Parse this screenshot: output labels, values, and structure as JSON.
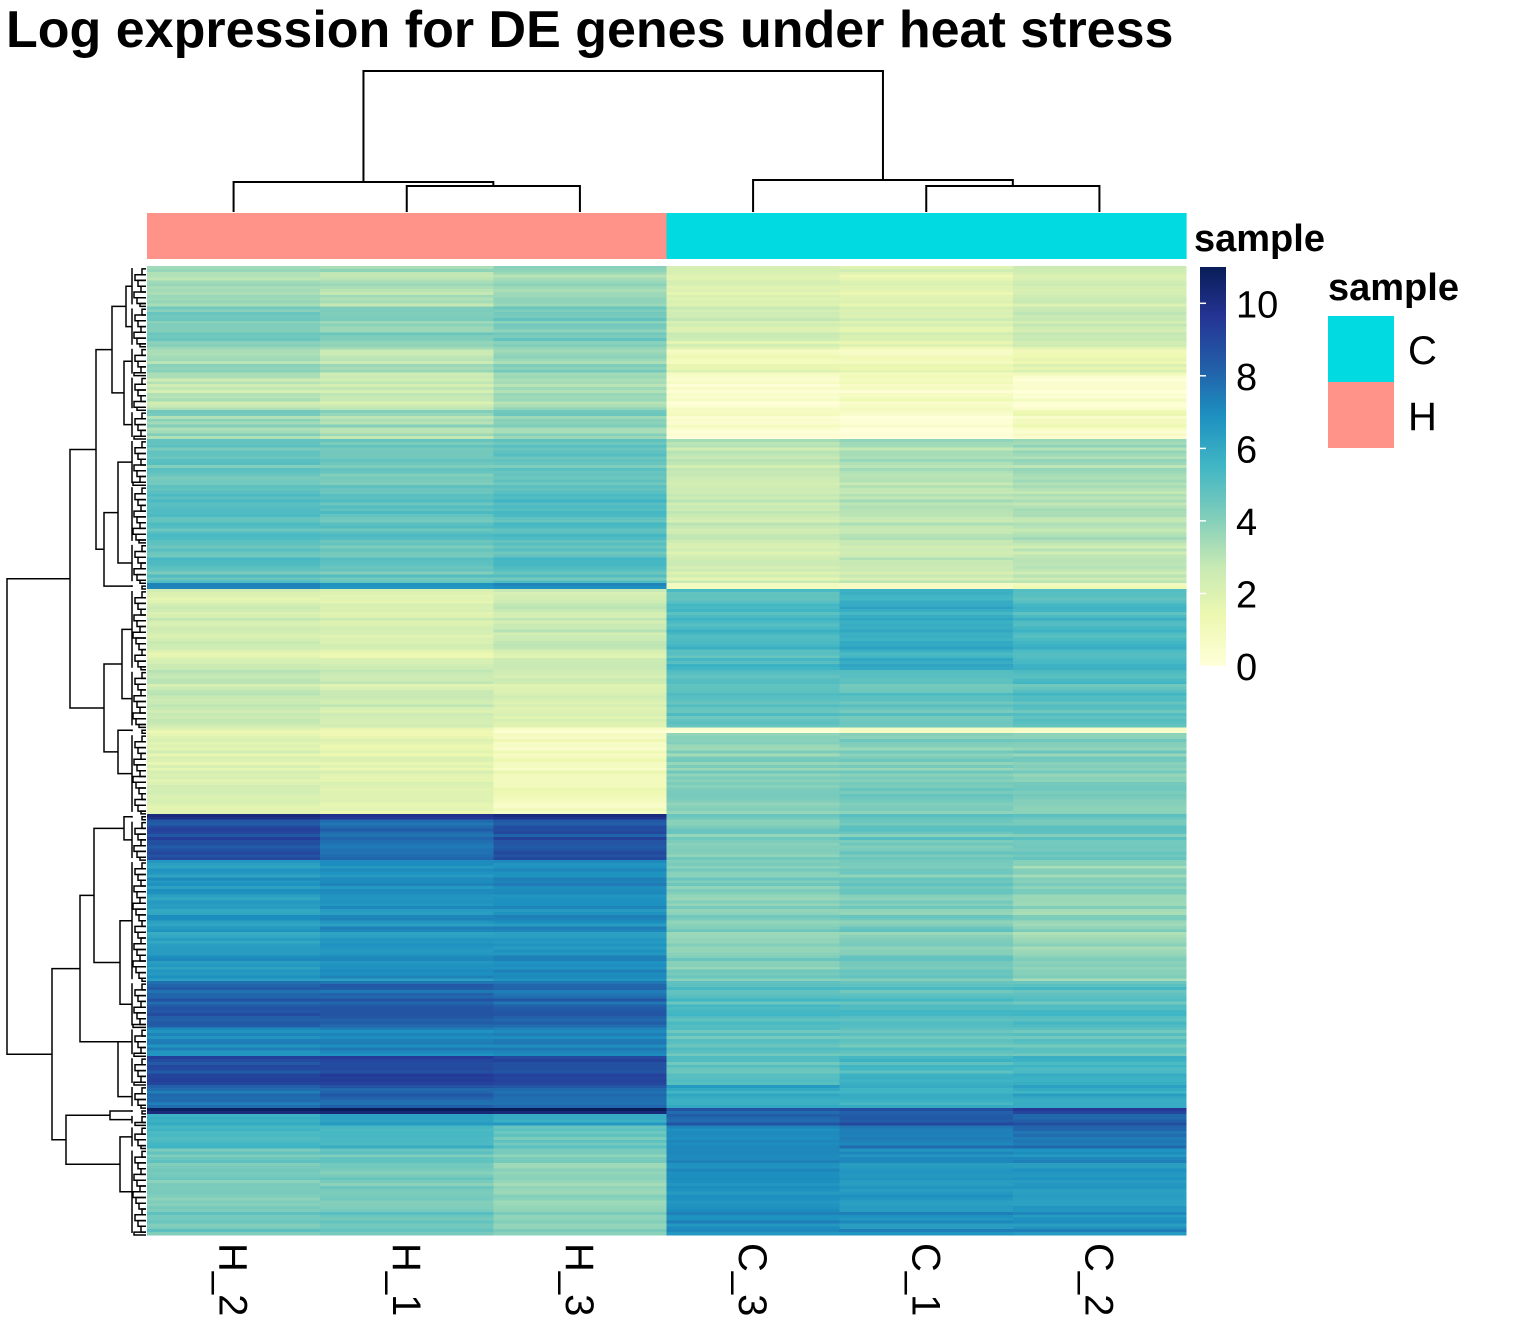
{
  "chart_data": {
    "type": "heatmap",
    "title": "Log expression for DE genes under heat stress",
    "columns": [
      "H_2",
      "H_1",
      "H_3",
      "C_3",
      "C_1",
      "C_2"
    ],
    "column_annotation": {
      "name": "sample",
      "values": [
        "H",
        "H",
        "H",
        "C",
        "C",
        "C"
      ],
      "legend": {
        "title": "sample",
        "levels": [
          {
            "label": "C",
            "color": "#00DAE0"
          },
          {
            "label": "H",
            "color": "#FF9289"
          }
        ]
      }
    },
    "colorbar": {
      "ticks": [
        0,
        2,
        4,
        6,
        8,
        10
      ],
      "range": [
        0,
        11
      ],
      "colors": [
        "#FFFFD9",
        "#EDF8B1",
        "#C7E9B4",
        "#7FCDBB",
        "#41B6C4",
        "#1D91C0",
        "#225EA8",
        "#253494",
        "#081D58"
      ]
    },
    "row_blocks": [
      {
        "rows": 14,
        "values": [
          3.5,
          3.2,
          3.6,
          2.0,
          1.8,
          2.3
        ]
      },
      {
        "rows": 14,
        "values": [
          4.2,
          4.0,
          4.3,
          2.3,
          2.0,
          2.6
        ]
      },
      {
        "rows": 10,
        "values": [
          3.6,
          3.1,
          3.8,
          1.4,
          1.2,
          1.7
        ]
      },
      {
        "rows": 12,
        "values": [
          2.8,
          2.6,
          3.3,
          0.4,
          0.8,
          0.3
        ]
      },
      {
        "rows": 10,
        "values": [
          3.8,
          3.4,
          3.9,
          0.5,
          0.2,
          0.9
        ]
      },
      {
        "rows": 16,
        "values": [
          4.6,
          4.4,
          4.7,
          2.8,
          3.3,
          3.5
        ]
      },
      {
        "rows": 20,
        "values": [
          5.1,
          4.9,
          5.1,
          2.6,
          3.0,
          3.2
        ]
      },
      {
        "rows": 14,
        "values": [
          4.8,
          4.6,
          4.9,
          2.2,
          2.6,
          2.8
        ]
      },
      {
        "rows": 2,
        "values": [
          7.3,
          6.9,
          7.3,
          1.0,
          0.8,
          1.4
        ]
      },
      {
        "rows": 28,
        "values": [
          2.2,
          2.0,
          2.5,
          5.2,
          5.8,
          5.3
        ]
      },
      {
        "rows": 20,
        "values": [
          2.6,
          2.3,
          2.0,
          4.8,
          4.6,
          4.9
        ]
      },
      {
        "rows": 2,
        "values": [
          1.6,
          1.5,
          0.6,
          0.4,
          0.8,
          0.5
        ]
      },
      {
        "rows": 28,
        "values": [
          2.0,
          1.7,
          1.0,
          4.0,
          4.2,
          4.1
        ]
      },
      {
        "rows": 2,
        "values": [
          9.8,
          9.2,
          9.6,
          4.0,
          4.4,
          4.4
        ]
      },
      {
        "rows": 14,
        "values": [
          8.9,
          7.9,
          8.7,
          4.2,
          4.6,
          4.6
        ]
      },
      {
        "rows": 42,
        "values": [
          6.5,
          6.8,
          6.9,
          4.0,
          4.2,
          3.8
        ]
      },
      {
        "rows": 16,
        "values": [
          8.2,
          8.2,
          8.0,
          5.1,
          4.9,
          5.0
        ]
      },
      {
        "rows": 10,
        "values": [
          7.0,
          7.3,
          7.2,
          4.8,
          4.7,
          4.8
        ]
      },
      {
        "rows": 10,
        "values": [
          8.9,
          9.1,
          9.0,
          5.0,
          5.4,
          5.6
        ]
      },
      {
        "rows": 8,
        "values": [
          7.9,
          8.2,
          8.0,
          6.0,
          5.8,
          6.1
        ]
      },
      {
        "rows": 2,
        "values": [
          10.5,
          10.5,
          10.6,
          8.2,
          8.6,
          9.2
        ]
      },
      {
        "rows": 4,
        "values": [
          6.0,
          6.6,
          6.3,
          8.4,
          8.7,
          8.4
        ]
      },
      {
        "rows": 8,
        "values": [
          5.6,
          5.5,
          4.8,
          7.1,
          7.6,
          7.9
        ]
      },
      {
        "rows": 30,
        "values": [
          4.4,
          4.5,
          4.0,
          7.0,
          6.8,
          6.8
        ]
      }
    ]
  }
}
